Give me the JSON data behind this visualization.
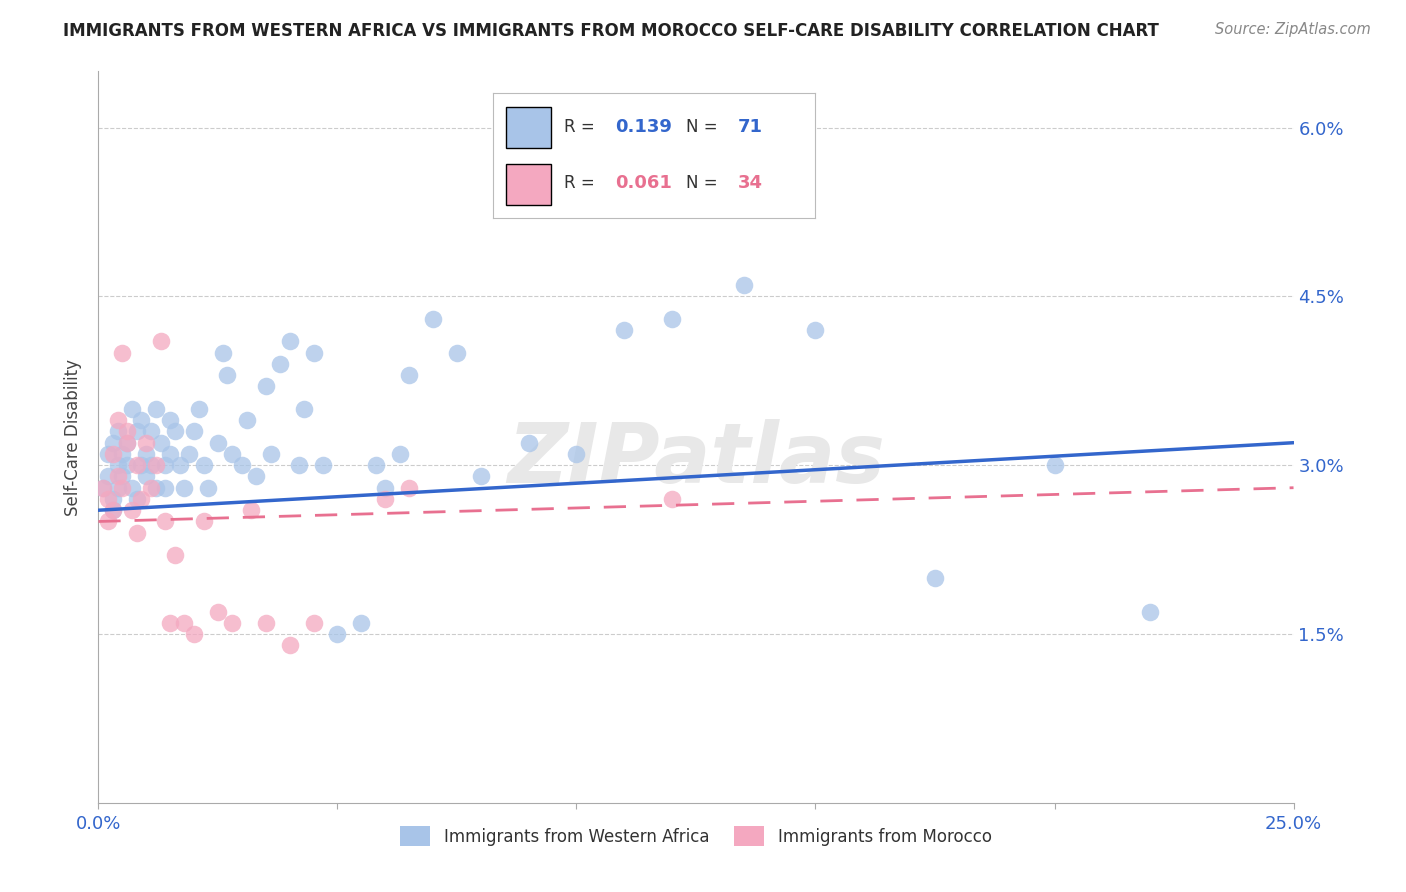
{
  "title": "IMMIGRANTS FROM WESTERN AFRICA VS IMMIGRANTS FROM MOROCCO SELF-CARE DISABILITY CORRELATION CHART",
  "source": "Source: ZipAtlas.com",
  "ylabel": "Self-Care Disability",
  "yticks": [
    0.0,
    0.015,
    0.03,
    0.045,
    0.06
  ],
  "ytick_labels": [
    "",
    "1.5%",
    "3.0%",
    "4.5%",
    "6.0%"
  ],
  "xlim": [
    0.0,
    0.25
  ],
  "ylim": [
    0.0,
    0.065
  ],
  "background_color": "#ffffff",
  "grid_color": "#cccccc",
  "blue_color": "#a8c4e8",
  "pink_color": "#f4a8c0",
  "blue_line_color": "#3366cc",
  "pink_line_color": "#e87090",
  "watermark": "ZIPatlas",
  "label1": "Immigrants from Western Africa",
  "label2": "Immigrants from Morocco",
  "blue_line_start_y": 0.026,
  "blue_line_end_y": 0.032,
  "pink_line_start_y": 0.025,
  "pink_line_end_y": 0.028,
  "blue_x": [
    0.001,
    0.002,
    0.002,
    0.003,
    0.003,
    0.003,
    0.004,
    0.004,
    0.004,
    0.005,
    0.005,
    0.006,
    0.006,
    0.007,
    0.007,
    0.008,
    0.008,
    0.009,
    0.009,
    0.01,
    0.01,
    0.011,
    0.011,
    0.012,
    0.012,
    0.013,
    0.014,
    0.014,
    0.015,
    0.015,
    0.016,
    0.017,
    0.018,
    0.019,
    0.02,
    0.021,
    0.022,
    0.023,
    0.025,
    0.026,
    0.027,
    0.028,
    0.03,
    0.031,
    0.033,
    0.035,
    0.036,
    0.038,
    0.04,
    0.042,
    0.043,
    0.045,
    0.047,
    0.05,
    0.055,
    0.058,
    0.06,
    0.063,
    0.065,
    0.07,
    0.075,
    0.08,
    0.09,
    0.1,
    0.11,
    0.12,
    0.135,
    0.15,
    0.175,
    0.2,
    0.22
  ],
  "blue_y": [
    0.028,
    0.029,
    0.031,
    0.027,
    0.032,
    0.026,
    0.03,
    0.028,
    0.033,
    0.029,
    0.031,
    0.03,
    0.032,
    0.028,
    0.035,
    0.027,
    0.033,
    0.03,
    0.034,
    0.029,
    0.031,
    0.03,
    0.033,
    0.028,
    0.035,
    0.032,
    0.03,
    0.028,
    0.034,
    0.031,
    0.033,
    0.03,
    0.028,
    0.031,
    0.033,
    0.035,
    0.03,
    0.028,
    0.032,
    0.04,
    0.038,
    0.031,
    0.03,
    0.034,
    0.029,
    0.037,
    0.031,
    0.039,
    0.041,
    0.03,
    0.035,
    0.04,
    0.03,
    0.015,
    0.016,
    0.03,
    0.028,
    0.031,
    0.038,
    0.043,
    0.04,
    0.029,
    0.032,
    0.031,
    0.042,
    0.043,
    0.046,
    0.042,
    0.02,
    0.03,
    0.017
  ],
  "pink_x": [
    0.001,
    0.002,
    0.002,
    0.003,
    0.003,
    0.004,
    0.004,
    0.005,
    0.005,
    0.006,
    0.006,
    0.007,
    0.008,
    0.008,
    0.009,
    0.01,
    0.011,
    0.012,
    0.013,
    0.014,
    0.015,
    0.016,
    0.018,
    0.02,
    0.022,
    0.025,
    0.028,
    0.032,
    0.035,
    0.04,
    0.045,
    0.06,
    0.065,
    0.12
  ],
  "pink_y": [
    0.028,
    0.027,
    0.025,
    0.031,
    0.026,
    0.034,
    0.029,
    0.04,
    0.028,
    0.032,
    0.033,
    0.026,
    0.03,
    0.024,
    0.027,
    0.032,
    0.028,
    0.03,
    0.041,
    0.025,
    0.016,
    0.022,
    0.016,
    0.015,
    0.025,
    0.017,
    0.016,
    0.026,
    0.016,
    0.014,
    0.016,
    0.027,
    0.028,
    0.027
  ]
}
